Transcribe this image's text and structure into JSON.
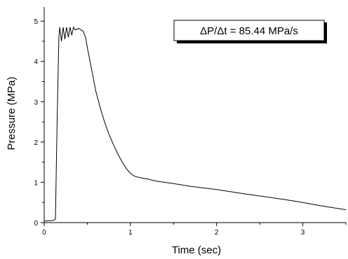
{
  "chart_data": {
    "type": "line",
    "title": "",
    "xlabel": "Time (sec)",
    "ylabel": "Pressure (MPa)",
    "xlim": [
      0,
      3.5
    ],
    "ylim": [
      0,
      5.35
    ],
    "xticks": [
      0,
      1,
      2,
      3
    ],
    "yticks": [
      0,
      1,
      2,
      3,
      4,
      5
    ],
    "grid": false,
    "legend": "none",
    "annotation": "ΔP/Δt = 85.44 MPa/s",
    "series": [
      {
        "color": "#000000",
        "x": [
          0,
          0.1,
          0.13,
          0.15,
          0.17,
          0.18,
          0.2,
          0.22,
          0.24,
          0.26,
          0.28,
          0.3,
          0.32,
          0.34,
          0.36,
          0.4,
          0.45,
          0.48,
          0.5,
          0.55,
          0.6,
          0.65,
          0.7,
          0.75,
          0.8,
          0.85,
          0.9,
          0.95,
          1.0,
          1.05,
          1.1,
          1.2,
          1.3,
          1.5,
          1.7,
          2.0,
          2.3,
          2.5,
          2.8,
          3.0,
          3.2,
          3.5
        ],
        "y": [
          0.04,
          0.05,
          0.08,
          2.5,
          4.6,
          4.85,
          4.5,
          4.85,
          4.55,
          4.85,
          4.6,
          4.85,
          4.65,
          4.85,
          4.78,
          4.82,
          4.75,
          4.6,
          4.35,
          3.8,
          3.25,
          2.85,
          2.5,
          2.2,
          1.95,
          1.72,
          1.52,
          1.35,
          1.22,
          1.15,
          1.12,
          1.08,
          1.03,
          0.97,
          0.9,
          0.82,
          0.72,
          0.66,
          0.57,
          0.5,
          0.42,
          0.32
        ]
      }
    ]
  }
}
